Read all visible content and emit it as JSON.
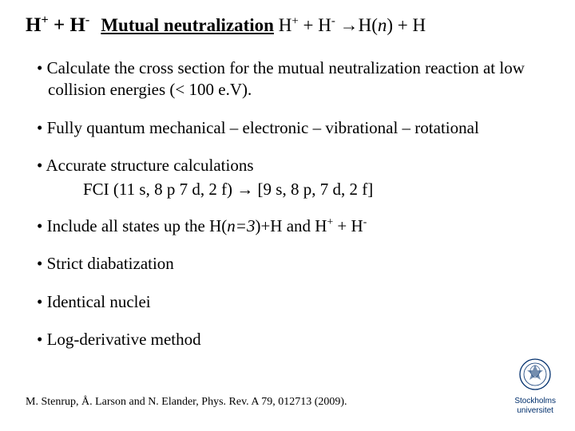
{
  "title": {
    "formula_left": "H<sup>+</sup> + H<sup>-</sup>",
    "underline": "Mutual neutralization",
    "rest": " H<sup>+</sup> + H<sup>-</sup> →H(<span class='italic'>n</span>) + H"
  },
  "bullets": [
    "Calculate the cross section for the mutual neutralization reaction at low collision energies (&lt; 100 e.V).",
    "Fully quantum mechanical – electronic – vibrational – rotational",
    "Accurate structure calculations",
    "Include all states up the H(<span class='italic'>n=3</span>)+H and H<sup>+</sup> + H<sup>-</sup>",
    "Strict diabatization",
    "Identical nuclei",
    "Log-derivative method"
  ],
  "subline": "FCI (11 s, 8 p 7 d, 2 f) → [9 s, 8 p, 7 d, 2 f]",
  "citation": "M. Stenrup, Å. Larson and N. Elander, Phys. Rev. A 79, 012713 (2009).",
  "logo": {
    "line1": "Stockholms",
    "line2": "universitet"
  },
  "colors": {
    "text": "#000000",
    "logo": "#002f6c",
    "background": "#ffffff"
  }
}
